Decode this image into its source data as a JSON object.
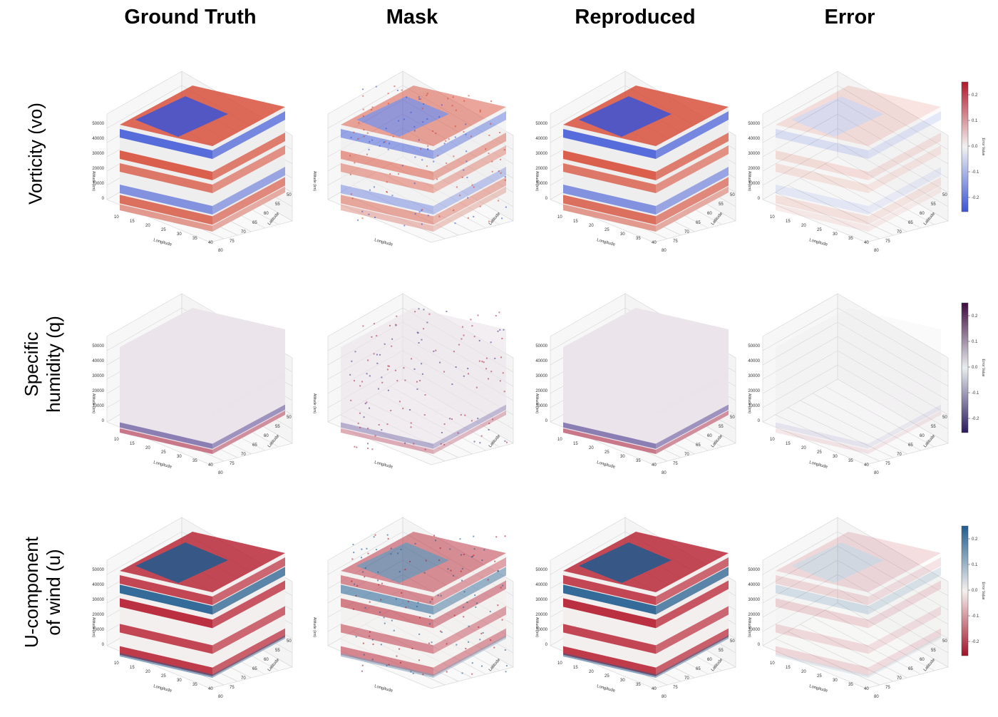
{
  "columns": [
    "Ground Truth",
    "Mask",
    "Reproduced",
    "Error"
  ],
  "rows": [
    {
      "label_line1": "Vorticity (vo)",
      "label_line2": ""
    },
    {
      "label_line1": "Specific",
      "label_line2": "humidity (q)"
    },
    {
      "label_line1": "U-component",
      "label_line2": "of wind (u)"
    }
  ],
  "axes": {
    "altitude_label": "Altitude (km)",
    "longitude_label": "Longitude",
    "latitude_label": "Latitude",
    "altitude_ticks": [
      "0",
      "10000",
      "20000",
      "30000",
      "40000",
      "50000"
    ],
    "longitude_ticks": [
      "10",
      "15",
      "20",
      "25",
      "30",
      "35",
      "40"
    ],
    "latitude_ticks": [
      "50",
      "55",
      "60",
      "65",
      "70",
      "75",
      "80"
    ]
  },
  "colorbars": [
    {
      "label": "Error Value",
      "ticks": [
        "0.2",
        "0.1",
        "0.0",
        "-0.1",
        "-0.2"
      ],
      "top": "#b2182b",
      "mid": "#f2f2f2",
      "bottom": "#3b55d6"
    },
    {
      "label": "Error Value",
      "ticks": [
        "0.2",
        "0.1",
        "0.0",
        "-0.1",
        "-0.2"
      ],
      "top": "#3d0b3f",
      "mid": "#e9eef0",
      "bottom": "#2a1a5e"
    },
    {
      "label": "Error Value",
      "ticks": [
        "0.2",
        "0.1",
        "0.0",
        "-0.1",
        "-0.2"
      ],
      "top": "#1f5c8f",
      "mid": "#f5f0ee",
      "bottom": "#a1122a"
    }
  ],
  "chart_data": {
    "type": "heatmap",
    "description_units": "3D voxel cubes of atmospheric fields over Longitude (10–40), Latitude (50–80), Altitude (0–50000)",
    "xlim": [
      10,
      40
    ],
    "ylim": [
      50,
      80
    ],
    "zlim": [
      0,
      50000
    ],
    "colors": {
      "vo": {
        "neg": "#3b55d6",
        "mid": "#eeeeee",
        "pos": "#d6452f"
      },
      "q": {
        "neg": "#4a3a8e",
        "mid": "#ebe4ea",
        "pos": "#b3304a"
      },
      "u": {
        "neg": "#1f5c8f",
        "mid": "#f3efee",
        "pos": "#b51b2c"
      }
    }
  }
}
